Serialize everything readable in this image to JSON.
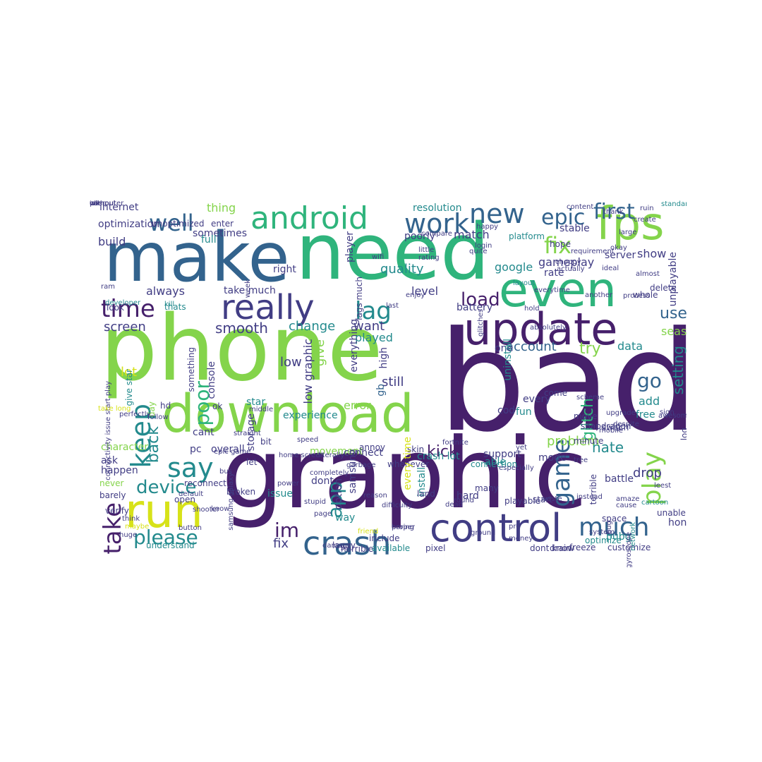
{
  "palette": {
    "dark_purple": "#46206b",
    "indigo": "#413d84",
    "blue": "#33638d",
    "teal": "#238a8d",
    "green": "#2fb47c",
    "light_green": "#84d44b",
    "yellow": "#d7e219"
  },
  "words": [
    {
      "text": "bad",
      "color": "dark_purple"
    },
    {
      "text": "phone",
      "color": "light_green"
    },
    {
      "text": "graphic",
      "color": "dark_purple"
    },
    {
      "text": "need",
      "color": "green"
    },
    {
      "text": "make",
      "color": "blue"
    },
    {
      "text": "download",
      "color": "light_green"
    },
    {
      "text": "update",
      "color": "dark_purple"
    },
    {
      "text": "even",
      "color": "green"
    },
    {
      "text": "fps",
      "color": "light_green"
    },
    {
      "text": "control",
      "color": "indigo"
    },
    {
      "text": "run",
      "color": "yellow"
    },
    {
      "text": "really",
      "color": "indigo"
    },
    {
      "text": "android",
      "color": "green"
    },
    {
      "text": "crash",
      "color": "blue"
    },
    {
      "text": "much",
      "color": "blue"
    },
    {
      "text": "work",
      "color": "blue"
    },
    {
      "text": "new",
      "color": "blue"
    },
    {
      "text": "time",
      "color": "dark_purple"
    },
    {
      "text": "lag",
      "color": "teal"
    },
    {
      "text": "keep",
      "color": "teal"
    },
    {
      "text": "say",
      "color": "teal"
    },
    {
      "text": "take",
      "color": "dark_purple"
    },
    {
      "text": "well",
      "color": "blue"
    },
    {
      "text": "epic",
      "color": "blue"
    },
    {
      "text": "first",
      "color": "blue"
    },
    {
      "text": "fix",
      "color": "light_green"
    },
    {
      "text": "game",
      "color": "blue"
    },
    {
      "text": "play",
      "color": "light_green"
    },
    {
      "text": "please",
      "color": "teal"
    },
    {
      "text": "device",
      "color": "teal"
    },
    {
      "text": "load",
      "color": "dark_purple"
    },
    {
      "text": "try",
      "color": "light_green"
    },
    {
      "text": "account",
      "color": "blue"
    },
    {
      "text": "go",
      "color": "blue"
    },
    {
      "text": "app",
      "color": "teal"
    },
    {
      "text": "im",
      "color": "dark_purple"
    },
    {
      "text": "poor",
      "color": "green"
    },
    {
      "text": "use",
      "color": "blue"
    },
    {
      "text": "back",
      "color": "teal"
    },
    {
      "text": "glitch",
      "color": "green"
    },
    {
      "text": "kick",
      "color": "dark_purple"
    },
    {
      "text": "hate",
      "color": "teal"
    },
    {
      "text": "smooth",
      "color": "indigo"
    },
    {
      "text": "screen",
      "color": "indigo"
    },
    {
      "text": "want",
      "color": "indigo"
    },
    {
      "text": "problem",
      "color": "light_green"
    },
    {
      "text": "setting",
      "color": "teal"
    },
    {
      "text": "gameplay",
      "color": "indigo"
    },
    {
      "text": "quality",
      "color": "teal"
    },
    {
      "text": "show",
      "color": "indigo"
    },
    {
      "text": "google",
      "color": "teal"
    },
    {
      "text": "match",
      "color": "indigo"
    },
    {
      "text": "data",
      "color": "teal"
    },
    {
      "text": "error",
      "color": "light_green"
    },
    {
      "text": "give",
      "color": "light_green"
    },
    {
      "text": "lot",
      "color": "yellow"
    },
    {
      "text": "low",
      "color": "indigo"
    },
    {
      "text": "star",
      "color": "teal"
    },
    {
      "text": "still",
      "color": "indigo"
    },
    {
      "text": "one",
      "color": "indigo"
    },
    {
      "text": "drop",
      "color": "indigo"
    },
    {
      "text": "add",
      "color": "teal"
    },
    {
      "text": "free",
      "color": "teal"
    },
    {
      "text": "change",
      "color": "teal"
    },
    {
      "text": "played",
      "color": "teal"
    },
    {
      "text": "level",
      "color": "indigo"
    },
    {
      "text": "battery",
      "color": "indigo"
    },
    {
      "text": "internet",
      "color": "indigo"
    },
    {
      "text": "thing",
      "color": "light_green"
    },
    {
      "text": "build",
      "color": "indigo"
    },
    {
      "text": "take much",
      "color": "indigo"
    },
    {
      "text": "always",
      "color": "indigo"
    },
    {
      "text": "right",
      "color": "indigo"
    },
    {
      "text": "player",
      "color": "indigo"
    },
    {
      "text": "rate",
      "color": "indigo"
    },
    {
      "text": "server",
      "color": "indigo"
    },
    {
      "text": "stable",
      "color": "indigo"
    },
    {
      "text": "hope",
      "color": "indigo"
    },
    {
      "text": "season",
      "color": "light_green"
    },
    {
      "text": "whole",
      "color": "indigo"
    },
    {
      "text": "delete",
      "color": "indigo"
    },
    {
      "text": "unplayable",
      "color": "indigo"
    },
    {
      "text": "resolution",
      "color": "teal"
    },
    {
      "text": "platform",
      "color": "teal"
    },
    {
      "text": "poorly",
      "color": "indigo"
    },
    {
      "text": "sometimes",
      "color": "indigo"
    },
    {
      "text": "full",
      "color": "teal"
    },
    {
      "text": "enter",
      "color": "indigo"
    },
    {
      "text": "optimization",
      "color": "indigo"
    },
    {
      "text": "unoptimized",
      "color": "indigo"
    },
    {
      "text": "console",
      "color": "indigo"
    },
    {
      "text": "something",
      "color": "indigo"
    },
    {
      "text": "low graphic",
      "color": "indigo"
    },
    {
      "text": "everything",
      "color": "indigo"
    },
    {
      "text": "high",
      "color": "indigo"
    },
    {
      "text": "uninstall",
      "color": "teal"
    },
    {
      "text": "fun",
      "color": "teal"
    },
    {
      "text": "every",
      "color": "indigo"
    },
    {
      "text": "come",
      "color": "indigo"
    },
    {
      "text": "storage",
      "color": "indigo"
    },
    {
      "text": "samsung",
      "color": "indigo"
    },
    {
      "text": "experience",
      "color": "teal"
    },
    {
      "text": "gb",
      "color": "blue"
    },
    {
      "text": "cod",
      "color": "indigo"
    },
    {
      "text": "mode",
      "color": "indigo"
    },
    {
      "text": "crash lot",
      "color": "teal"
    },
    {
      "text": "movement",
      "color": "light_green"
    },
    {
      "text": "connect",
      "color": "indigo"
    },
    {
      "text": "pc",
      "color": "indigo"
    },
    {
      "text": "overall",
      "color": "indigo"
    },
    {
      "text": "cant",
      "color": "indigo"
    },
    {
      "text": "character",
      "color": "light_green"
    },
    {
      "text": "ask",
      "color": "indigo"
    },
    {
      "text": "happen",
      "color": "indigo"
    },
    {
      "text": "never",
      "color": "light_green"
    },
    {
      "text": "barely",
      "color": "indigo"
    },
    {
      "text": "open",
      "color": "indigo"
    },
    {
      "text": "dont",
      "color": "indigo"
    },
    {
      "text": "issue",
      "color": "teal"
    },
    {
      "text": "way",
      "color": "teal"
    },
    {
      "text": "option",
      "color": "indigo"
    },
    {
      "text": "install",
      "color": "teal"
    },
    {
      "text": "able",
      "color": "teal"
    },
    {
      "text": "hard",
      "color": "indigo"
    },
    {
      "text": "support",
      "color": "indigo"
    },
    {
      "text": "connection",
      "color": "teal"
    },
    {
      "text": "many",
      "color": "indigo"
    },
    {
      "text": "playable",
      "color": "indigo"
    },
    {
      "text": "start",
      "color": "indigo"
    },
    {
      "text": "battle",
      "color": "indigo"
    },
    {
      "text": "optimize",
      "color": "teal"
    },
    {
      "text": "terrible",
      "color": "indigo"
    },
    {
      "text": "space",
      "color": "indigo"
    },
    {
      "text": "pubg",
      "color": "teal"
    },
    {
      "text": "log",
      "color": "indigo"
    },
    {
      "text": "honestly",
      "color": "indigo"
    },
    {
      "text": "understand",
      "color": "teal"
    },
    {
      "text": "laggy",
      "color": "indigo"
    },
    {
      "text": "pixel",
      "color": "indigo"
    },
    {
      "text": "horrible",
      "color": "indigo"
    },
    {
      "text": "available",
      "color": "teal"
    },
    {
      "text": "include",
      "color": "indigo"
    },
    {
      "text": "dont know",
      "color": "indigo"
    },
    {
      "text": "drain",
      "color": "indigo"
    },
    {
      "text": "freeze",
      "color": "indigo"
    },
    {
      "text": "customize",
      "color": "indigo"
    },
    {
      "text": "snapdragon",
      "color": "indigo"
    },
    {
      "text": "switch",
      "color": "indigo"
    },
    {
      "text": "move",
      "color": "indigo"
    },
    {
      "text": "minute",
      "color": "indigo"
    },
    {
      "text": "skin",
      "color": "indigo"
    },
    {
      "text": "whenever",
      "color": "indigo"
    },
    {
      "text": "land",
      "color": "indigo"
    },
    {
      "text": "fix",
      "color": "indigo"
    },
    {
      "text": "give star",
      "color": "teal"
    },
    {
      "text": "bit",
      "color": "indigo"
    },
    {
      "text": "let",
      "color": "indigo"
    },
    {
      "text": "hd",
      "color": "indigo"
    },
    {
      "text": "lags much",
      "color": "indigo"
    },
    {
      "text": "thats",
      "color": "teal"
    },
    {
      "text": "day",
      "color": "light_green"
    },
    {
      "text": "look",
      "color": "indigo"
    },
    {
      "text": "ok",
      "color": "indigo"
    },
    {
      "text": "connectivity issue start play",
      "color": "indigo"
    },
    {
      "text": "epic game",
      "color": "indigo"
    },
    {
      "text": "annoy",
      "color": "indigo"
    },
    {
      "text": "samsung galaxy",
      "color": "indigo"
    },
    {
      "text": "reconnect",
      "color": "indigo"
    },
    {
      "text": "verify",
      "color": "indigo"
    },
    {
      "text": "think",
      "color": "indigo"
    },
    {
      "text": "waste",
      "color": "indigo"
    },
    {
      "text": "shooter",
      "color": "indigo"
    },
    {
      "text": "know",
      "color": "indigo"
    },
    {
      "text": "every time",
      "color": "yellow"
    },
    {
      "text": "cartoon",
      "color": "teal"
    },
    {
      "text": "unable",
      "color": "indigo"
    },
    {
      "text": "pro",
      "color": "indigo"
    },
    {
      "text": "money",
      "color": "indigo"
    },
    {
      "text": "bug",
      "color": "indigo"
    },
    {
      "text": "network",
      "color": "teal"
    },
    {
      "text": "leest",
      "color": "indigo"
    },
    {
      "text": "amaze",
      "color": "indigo"
    },
    {
      "text": "upgrade",
      "color": "indigo"
    },
    {
      "text": "mobile",
      "color": "indigo"
    },
    {
      "text": "despite",
      "color": "indigo"
    },
    {
      "text": "cause",
      "color": "indigo"
    },
    {
      "text": "speed",
      "color": "indigo"
    },
    {
      "text": "instead",
      "color": "indigo"
    },
    {
      "text": "dead",
      "color": "indigo"
    },
    {
      "text": "literally",
      "color": "indigo"
    },
    {
      "text": "garbage",
      "color": "indigo"
    },
    {
      "text": "power",
      "color": "indigo"
    },
    {
      "text": "reason",
      "color": "indigo"
    },
    {
      "text": "boring",
      "color": "indigo"
    },
    {
      "text": "especially",
      "color": "indigo"
    },
    {
      "text": "sign",
      "color": "indigo"
    },
    {
      "text": "enjoy",
      "color": "indigo"
    },
    {
      "text": "last",
      "color": "indigo"
    },
    {
      "text": "hold",
      "color": "indigo"
    },
    {
      "text": "wifi",
      "color": "indigo"
    },
    {
      "text": "little",
      "color": "indigo"
    },
    {
      "text": "everytime",
      "color": "indigo"
    },
    {
      "text": "content",
      "color": "indigo"
    },
    {
      "text": "standard",
      "color": "teal"
    },
    {
      "text": "thank",
      "color": "indigo"
    },
    {
      "text": "ruin",
      "color": "indigo"
    },
    {
      "text": "large",
      "color": "indigo"
    },
    {
      "text": "create",
      "color": "indigo"
    },
    {
      "text": "almost",
      "color": "indigo"
    },
    {
      "text": "okay",
      "color": "indigo"
    },
    {
      "text": "ideal",
      "color": "indigo"
    },
    {
      "text": "actually",
      "color": "indigo"
    },
    {
      "text": "rating",
      "color": "indigo"
    },
    {
      "text": "week",
      "color": "indigo"
    },
    {
      "text": "login",
      "color": "indigo"
    },
    {
      "text": "happy",
      "color": "indigo"
    },
    {
      "text": "requirement",
      "color": "indigo"
    },
    {
      "text": "choppy",
      "color": "indigo"
    },
    {
      "text": "quite",
      "color": "indigo"
    },
    {
      "text": "kill",
      "color": "teal"
    },
    {
      "text": "ram",
      "color": "indigo"
    },
    {
      "text": "developer",
      "color": "teal"
    },
    {
      "text": "layout",
      "color": "teal"
    },
    {
      "text": "another",
      "color": "indigo"
    },
    {
      "text": "process",
      "color": "indigo"
    },
    {
      "text": "absolutely",
      "color": "indigo"
    },
    {
      "text": "glitches",
      "color": "indigo"
    },
    {
      "text": "take long",
      "color": "yellow"
    },
    {
      "text": "home screen",
      "color": "indigo"
    },
    {
      "text": "button",
      "color": "indigo"
    },
    {
      "text": "default",
      "color": "indigo"
    },
    {
      "text": "broken",
      "color": "indigo"
    },
    {
      "text": "bus",
      "color": "indigo"
    },
    {
      "text": "huge",
      "color": "indigo"
    },
    {
      "text": "maybe",
      "color": "yellow"
    },
    {
      "text": "friend",
      "color": "yellow"
    },
    {
      "text": "damage",
      "color": "indigo"
    },
    {
      "text": "stupid",
      "color": "indigo"
    },
    {
      "text": "page",
      "color": "indigo"
    },
    {
      "text": "difficulty",
      "color": "indigo"
    },
    {
      "text": "round",
      "color": "indigo"
    },
    {
      "text": "ground",
      "color": "indigo"
    },
    {
      "text": "tree",
      "color": "indigo"
    },
    {
      "text": "yet",
      "color": "indigo"
    },
    {
      "text": "scheme",
      "color": "indigo"
    },
    {
      "text": "gyroscope",
      "color": "indigo"
    },
    {
      "text": "perfectly",
      "color": "indigo"
    },
    {
      "text": "follow",
      "color": "indigo"
    },
    {
      "text": "straight",
      "color": "indigo"
    },
    {
      "text": "middle",
      "color": "indigo"
    },
    {
      "text": "system",
      "color": "indigo"
    },
    {
      "text": "completely",
      "color": "indigo"
    },
    {
      "text": "fortnite",
      "color": "indigo"
    },
    {
      "text": "compare",
      "color": "indigo"
    },
    {
      "text": "proper",
      "color": "indigo"
    },
    {
      "text": "awesome",
      "color": "indigo"
    },
    {
      "text": "without",
      "color": "indigo"
    },
    {
      "text": "computer",
      "color": "indigo"
    },
    {
      "text": "idk",
      "color": "indigo"
    },
    {
      "text": "user",
      "color": "indigo"
    },
    {
      "text": "pas",
      "color": "indigo"
    }
  ]
}
